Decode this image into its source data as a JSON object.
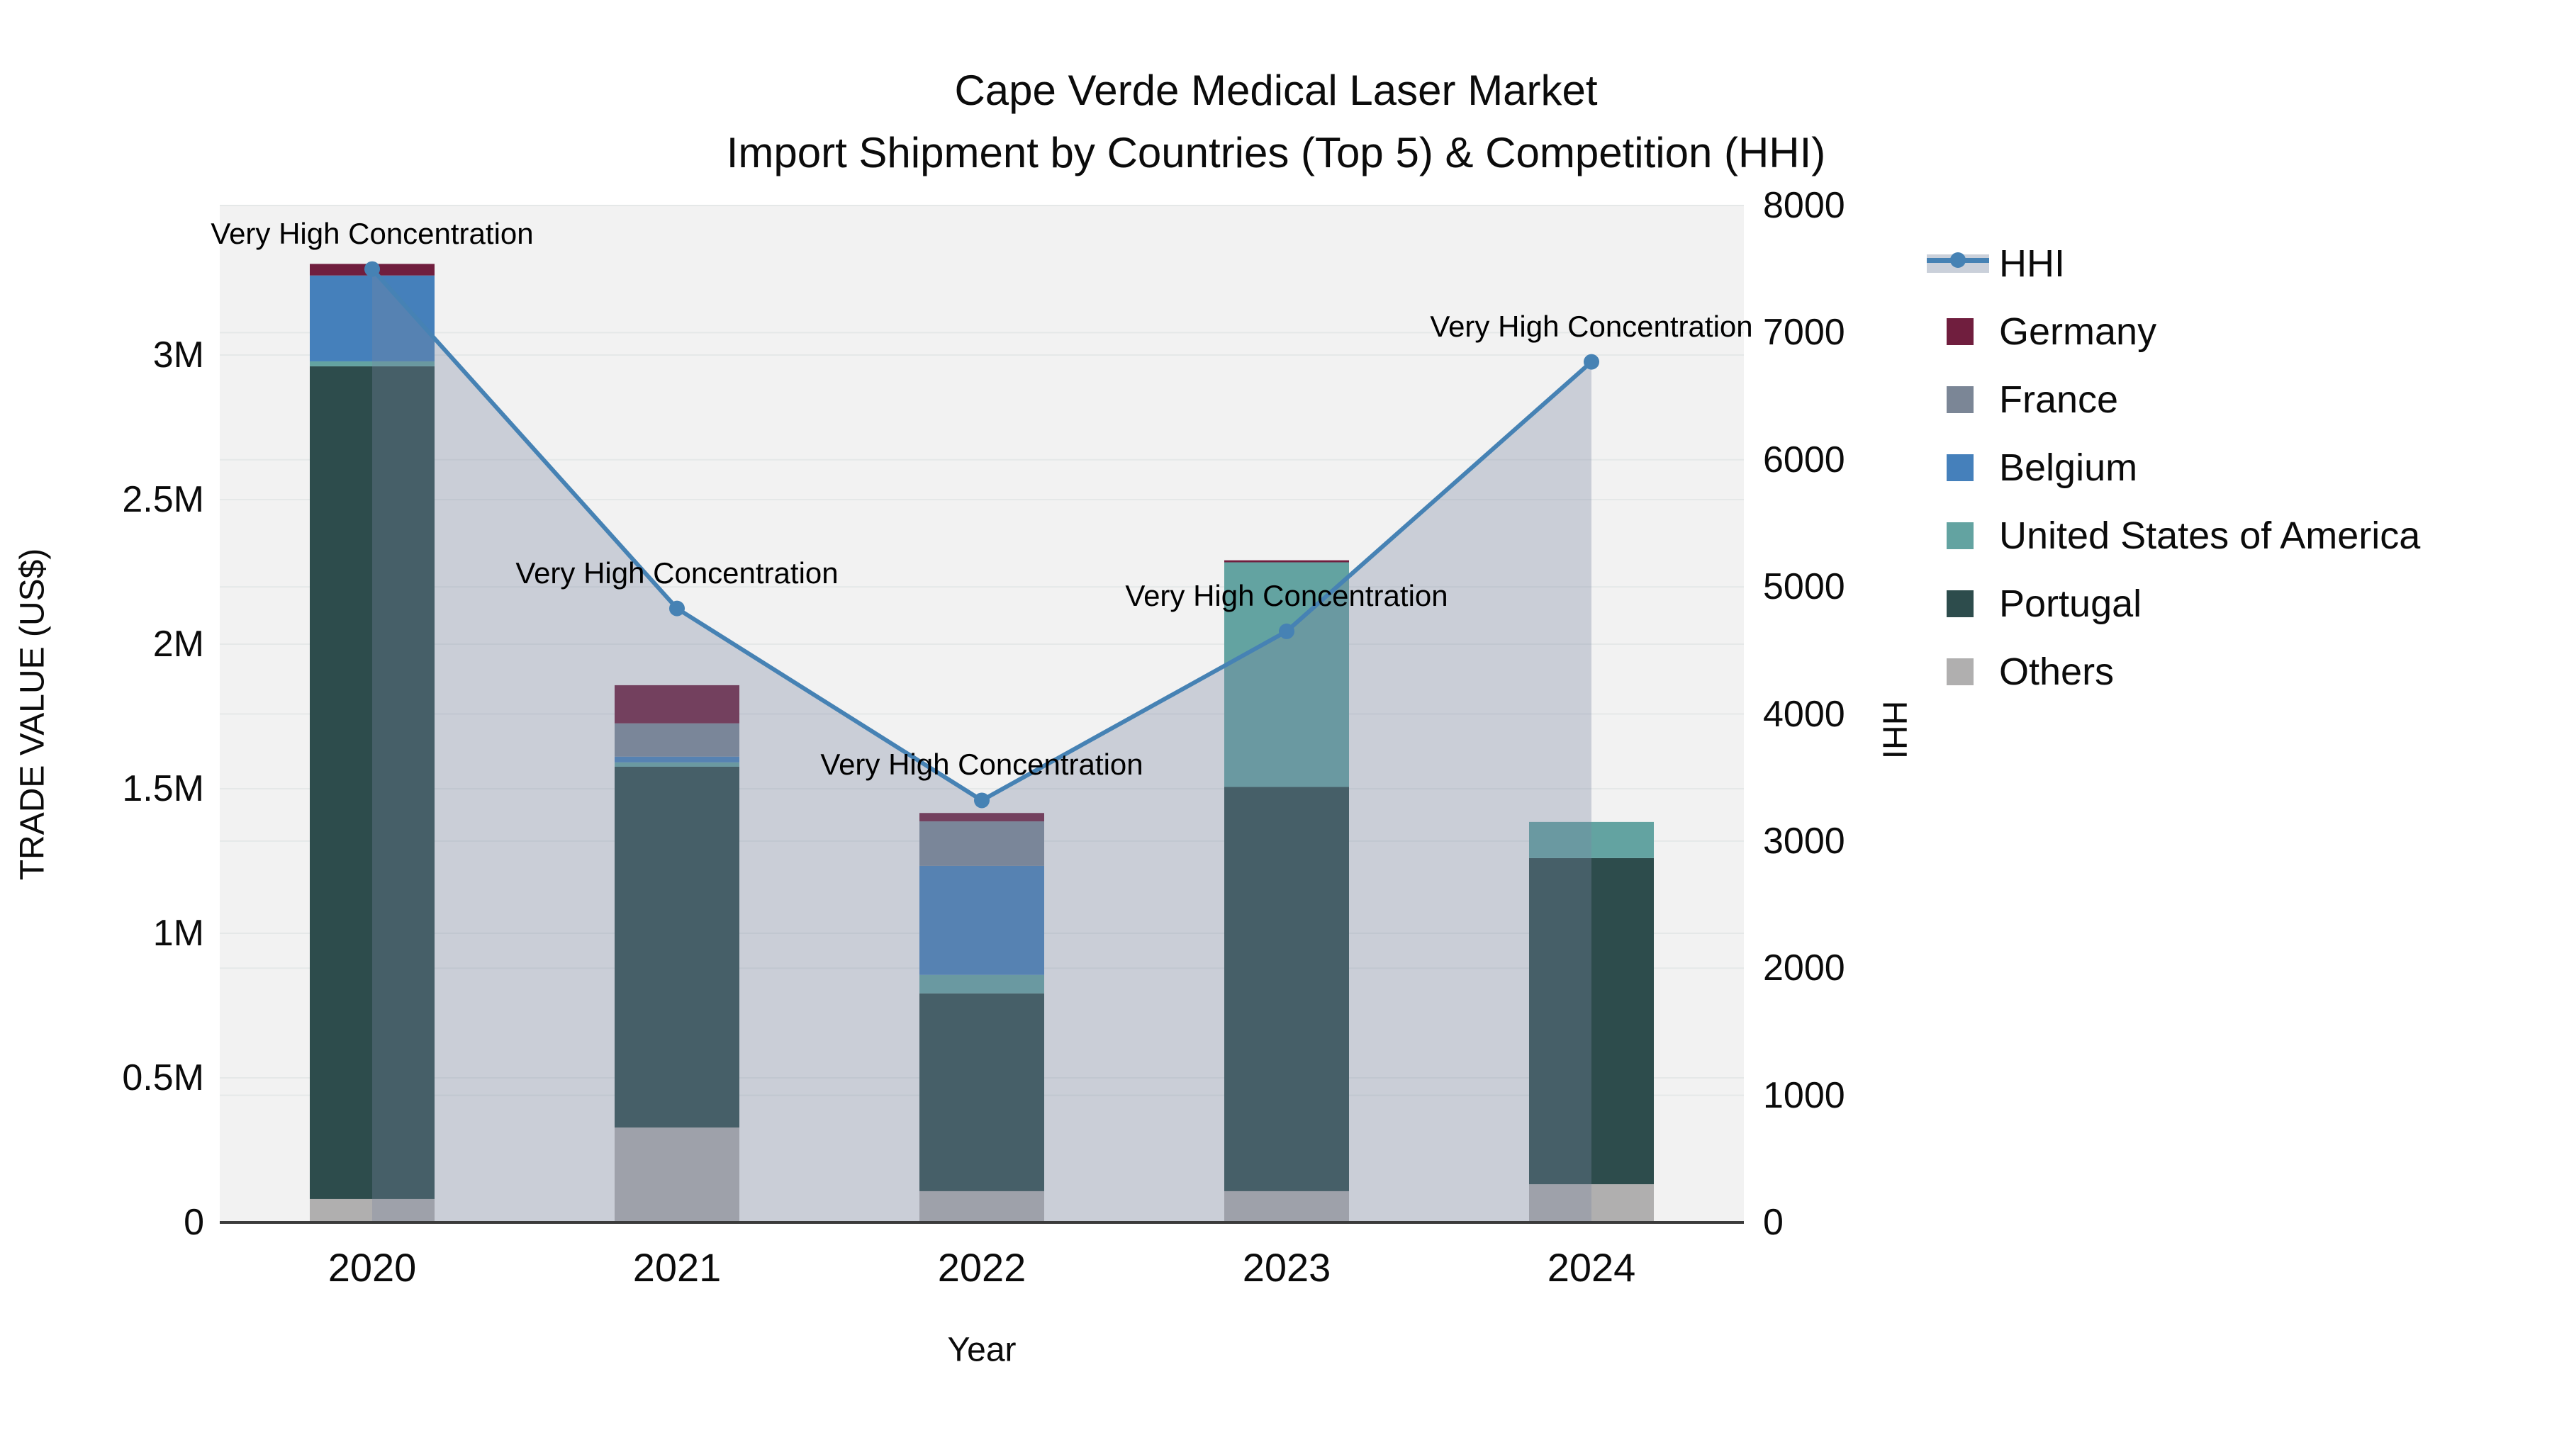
{
  "title": {
    "line1": "Cape Verde Medical Laser Market",
    "line2": "Import Shipment by Countries (Top 5) & Competition (HHI)"
  },
  "axes": {
    "x": {
      "title": "Year"
    },
    "y_left": {
      "title": "TRADE VALUE (US$)",
      "tick_labels": [
        "0",
        "0.5M",
        "1M",
        "1.5M",
        "2M",
        "2.5M",
        "3M"
      ],
      "tick_values": [
        0,
        500000,
        1000000,
        1500000,
        2000000,
        2500000,
        3000000
      ],
      "max": 3517000
    },
    "y_right": {
      "title": "HHI",
      "tick_labels": [
        "0",
        "1000",
        "2000",
        "3000",
        "4000",
        "5000",
        "6000",
        "7000",
        "8000"
      ],
      "tick_values": [
        0,
        1000,
        2000,
        3000,
        4000,
        5000,
        6000,
        7000,
        8000
      ],
      "max": 8000
    }
  },
  "legend": {
    "items": [
      {
        "label": "HHI",
        "type": "line",
        "color": "#4682b4"
      },
      {
        "label": "Germany",
        "type": "square",
        "color": "#701e3e"
      },
      {
        "label": "France",
        "type": "square",
        "color": "#7b8696"
      },
      {
        "label": "Belgium",
        "type": "square",
        "color": "#4580bb"
      },
      {
        "label": "United States of America",
        "type": "square",
        "color": "#63a3a1"
      },
      {
        "label": "Portugal",
        "type": "square",
        "color": "#2d4c4c"
      },
      {
        "label": "Others",
        "type": "square",
        "color": "#b0afaf"
      }
    ]
  },
  "chart_data": {
    "type": "bar",
    "subtype": "stacked bars (left axis) + HHI line with area fill (right axis)",
    "title": "Cape Verde Medical Laser Market — Import Shipment by Countries (Top 5) & Competition (HHI)",
    "categories": [
      "2020",
      "2021",
      "2022",
      "2023",
      "2024"
    ],
    "stack_order_bottom_to_top": [
      "Others",
      "Portugal",
      "United States of America",
      "Belgium",
      "France",
      "Germany"
    ],
    "series": [
      {
        "name": "Germany",
        "color": "#701e3e",
        "values": [
          40000,
          132000,
          29000,
          7000,
          0
        ]
      },
      {
        "name": "France",
        "color": "#7b8696",
        "values": [
          0,
          115000,
          154000,
          0,
          0
        ]
      },
      {
        "name": "Belgium",
        "color": "#4580bb",
        "values": [
          297000,
          20000,
          377000,
          0,
          0
        ]
      },
      {
        "name": "United States of America",
        "color": "#63a3a1",
        "values": [
          17000,
          15000,
          64000,
          777000,
          125000
        ]
      },
      {
        "name": "Portugal",
        "color": "#2d4c4c",
        "values": [
          2880000,
          1248000,
          684000,
          1398000,
          1128000
        ]
      },
      {
        "name": "Others",
        "color": "#b0afaf",
        "values": [
          81000,
          328000,
          108000,
          108000,
          132000
        ]
      }
    ],
    "bar_totals": [
      3315000,
      1858000,
      1416000,
      2290000,
      1385000
    ],
    "line": {
      "name": "HHI",
      "axis": "right",
      "color": "#4682b4",
      "area_fill": "rgba(121,134,160,0.33)",
      "values": [
        7500,
        4830,
        3320,
        4650,
        6770
      ]
    },
    "annotations": [
      {
        "category": "2020",
        "text": "Very High Concentration"
      },
      {
        "category": "2021",
        "text": "Very High Concentration"
      },
      {
        "category": "2022",
        "text": "Very High Concentration"
      },
      {
        "category": "2023",
        "text": "Very High Concentration"
      },
      {
        "category": "2024",
        "text": "Very High Concentration"
      }
    ],
    "xlabel": "Year",
    "ylabel": "TRADE VALUE (US$)",
    "y2label": "HHI",
    "ylim": [
      0,
      3517000
    ],
    "y2lim": [
      0,
      8000
    ],
    "grid": true,
    "legend_position": "right",
    "plot_background": "#f2f2f2"
  }
}
